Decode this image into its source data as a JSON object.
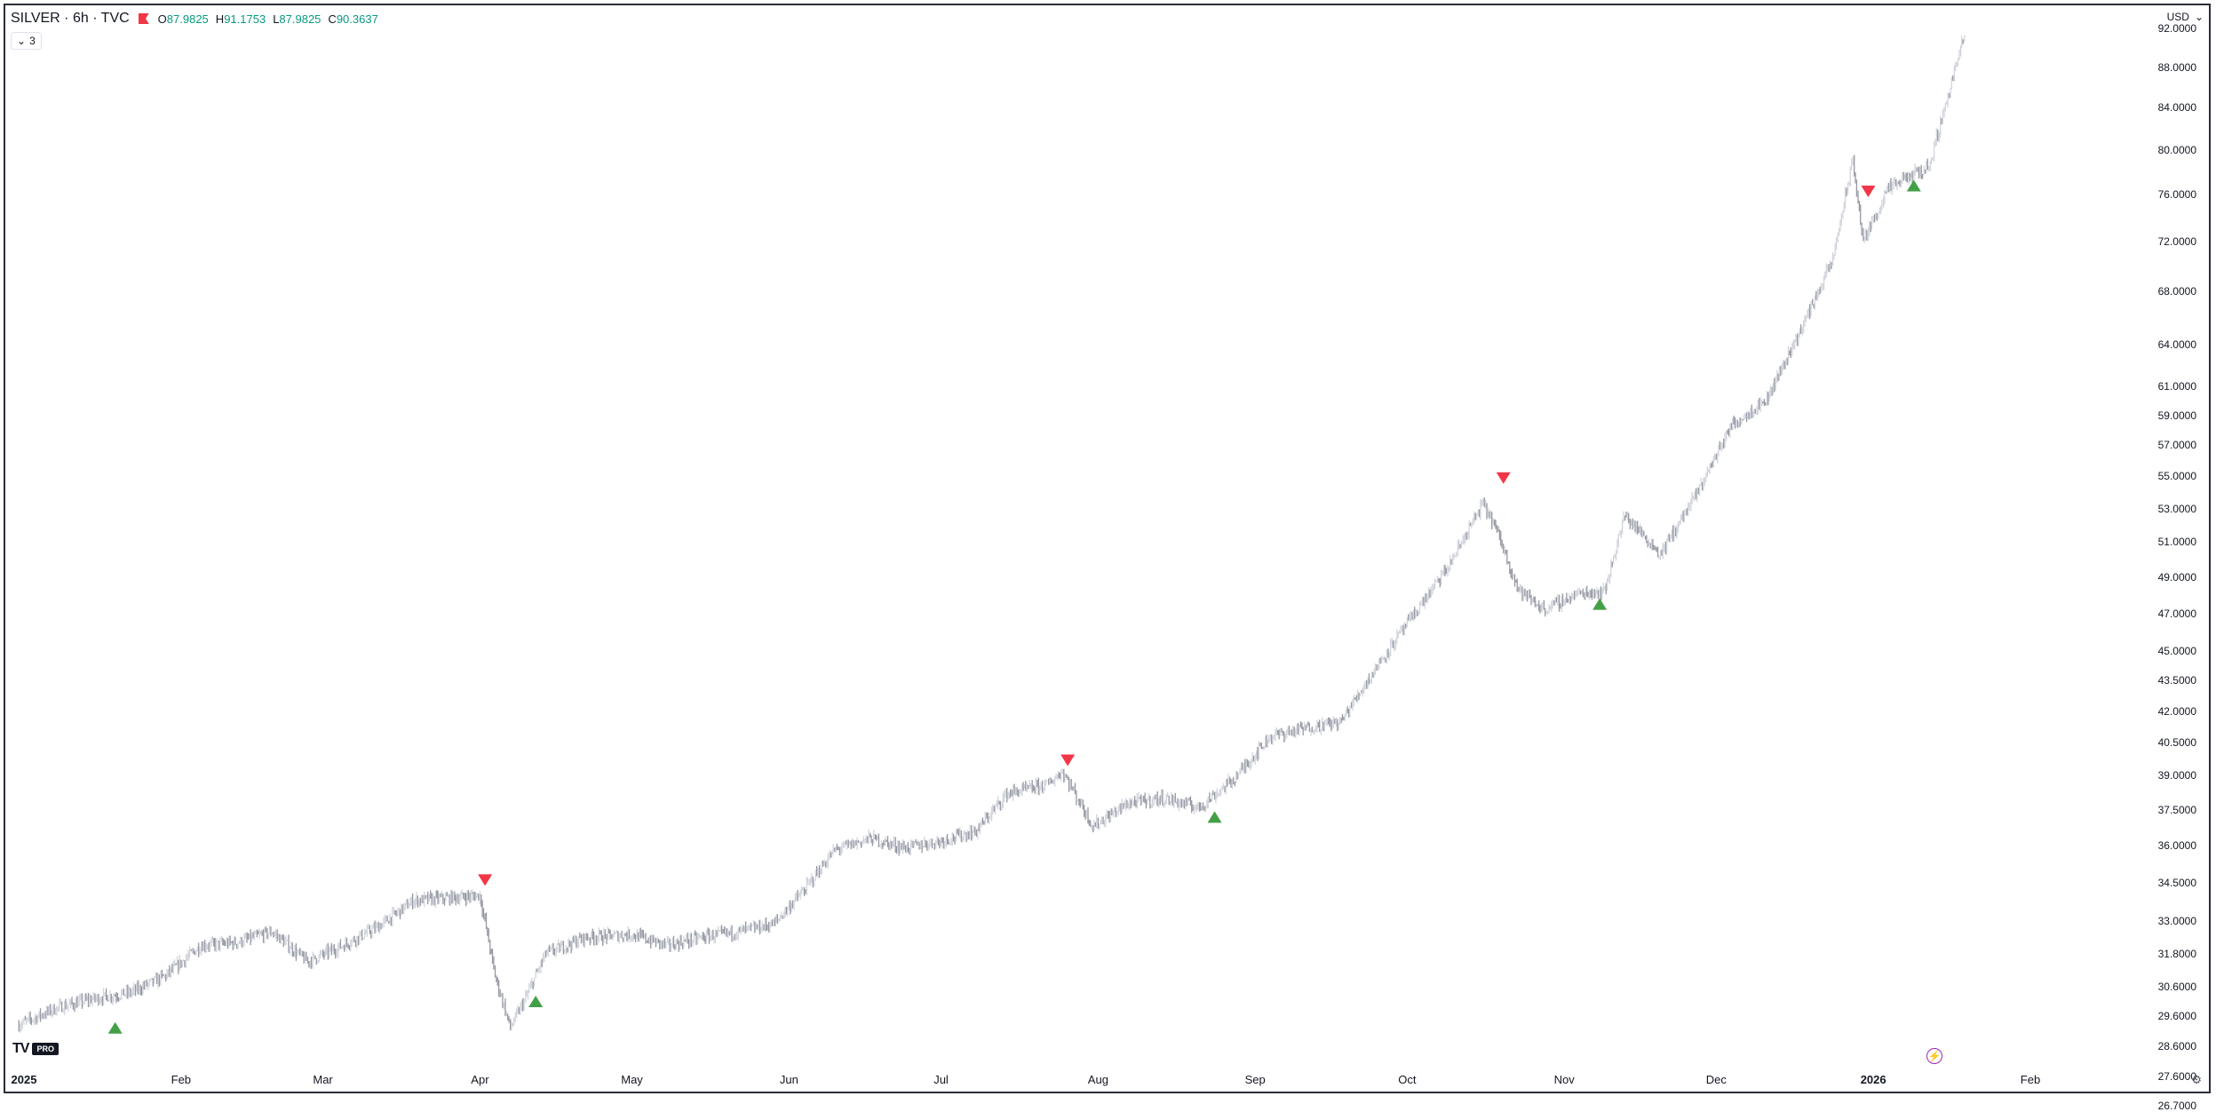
{
  "header": {
    "symbol": "SILVER · 6h · TVC",
    "ohlc": [
      {
        "key": "O",
        "value": "87.9825"
      },
      {
        "key": "H",
        "value": "91.1753"
      },
      {
        "key": "L",
        "value": "87.9825"
      },
      {
        "key": "C",
        "value": "90.3637"
      }
    ],
    "indicator_count": "3",
    "currency": "USD"
  },
  "colors": {
    "up_marker": "#43a047",
    "down_marker": "#f23645",
    "bars": "#b2b5be",
    "value_text": "#089981"
  },
  "logo": {
    "text": "TV",
    "badge": "PRO"
  },
  "icons": [
    "flag-icon",
    "chevron-down-icon",
    "lightning-icon",
    "settings-icon"
  ],
  "chart_data": {
    "type": "ohlc",
    "price_scale": "log",
    "y_ticks": [
      "92.0000",
      "88.0000",
      "84.0000",
      "80.0000",
      "76.0000",
      "72.0000",
      "68.0000",
      "64.0000",
      "61.0000",
      "59.0000",
      "57.0000",
      "55.0000",
      "53.0000",
      "51.0000",
      "49.0000",
      "47.0000",
      "45.0000",
      "43.5000",
      "42.0000",
      "40.5000",
      "39.0000",
      "37.5000",
      "36.0000",
      "34.5000",
      "33.0000",
      "31.8000",
      "30.6000",
      "29.6000",
      "28.6000",
      "27.6000",
      "26.7000"
    ],
    "x_ticks": [
      {
        "label": "2025",
        "date": "2025-01-01",
        "bold": true
      },
      {
        "label": "Feb",
        "date": "2025-02-01"
      },
      {
        "label": "Mar",
        "date": "2025-03-01"
      },
      {
        "label": "Apr",
        "date": "2025-04-01"
      },
      {
        "label": "May",
        "date": "2025-05-01"
      },
      {
        "label": "Jun",
        "date": "2025-06-01"
      },
      {
        "label": "Jul",
        "date": "2025-07-01"
      },
      {
        "label": "Aug",
        "date": "2025-08-01"
      },
      {
        "label": "Sep",
        "date": "2025-09-01"
      },
      {
        "label": "Oct",
        "date": "2025-10-01"
      },
      {
        "label": "Nov",
        "date": "2025-11-01"
      },
      {
        "label": "Dec",
        "date": "2025-12-01"
      },
      {
        "label": "2026",
        "date": "2026-01-01",
        "bold": true
      },
      {
        "label": "Feb",
        "date": "2026-02-01"
      }
    ],
    "price_path": [
      [
        "2024-12-31",
        29.3
      ],
      [
        "2025-01-08",
        29.9
      ],
      [
        "2025-01-15",
        30.2
      ],
      [
        "2025-01-22",
        30.4
      ],
      [
        "2025-01-29",
        31.0
      ],
      [
        "2025-02-05",
        32.1
      ],
      [
        "2025-02-12",
        32.2
      ],
      [
        "2025-02-19",
        32.6
      ],
      [
        "2025-02-26",
        31.5
      ],
      [
        "2025-03-05",
        32.1
      ],
      [
        "2025-03-12",
        32.8
      ],
      [
        "2025-03-19",
        33.8
      ],
      [
        "2025-03-26",
        33.9
      ],
      [
        "2025-04-01",
        34.0
      ],
      [
        "2025-04-04",
        31.0
      ],
      [
        "2025-04-07",
        29.2
      ],
      [
        "2025-04-10",
        30.2
      ],
      [
        "2025-04-14",
        31.8
      ],
      [
        "2025-04-22",
        32.4
      ],
      [
        "2025-05-01",
        32.5
      ],
      [
        "2025-05-08",
        32.1
      ],
      [
        "2025-05-15",
        32.4
      ],
      [
        "2025-05-22",
        32.6
      ],
      [
        "2025-05-29",
        32.9
      ],
      [
        "2025-06-04",
        34.2
      ],
      [
        "2025-06-10",
        35.8
      ],
      [
        "2025-06-17",
        36.3
      ],
      [
        "2025-06-24",
        35.9
      ],
      [
        "2025-07-01",
        36.2
      ],
      [
        "2025-07-08",
        36.6
      ],
      [
        "2025-07-14",
        38.2
      ],
      [
        "2025-07-22",
        38.6
      ],
      [
        "2025-07-25",
        39.2
      ],
      [
        "2025-07-31",
        36.8
      ],
      [
        "2025-08-07",
        37.8
      ],
      [
        "2025-08-14",
        38.0
      ],
      [
        "2025-08-21",
        37.6
      ],
      [
        "2025-08-28",
        38.9
      ],
      [
        "2025-09-04",
        40.8
      ],
      [
        "2025-09-11",
        41.2
      ],
      [
        "2025-09-18",
        41.5
      ],
      [
        "2025-09-25",
        44.2
      ],
      [
        "2025-10-02",
        46.8
      ],
      [
        "2025-10-09",
        49.5
      ],
      [
        "2025-10-16",
        53.3
      ],
      [
        "2025-10-18",
        52.2
      ],
      [
        "2025-10-23",
        48.3
      ],
      [
        "2025-10-28",
        47.2
      ],
      [
        "2025-11-04",
        48.1
      ],
      [
        "2025-11-09",
        48.2
      ],
      [
        "2025-11-13",
        52.6
      ],
      [
        "2025-11-20",
        50.3
      ],
      [
        "2025-11-27",
        53.8
      ],
      [
        "2025-12-04",
        58.3
      ],
      [
        "2025-12-11",
        60.1
      ],
      [
        "2025-12-18",
        65.3
      ],
      [
        "2025-12-24",
        70.5
      ],
      [
        "2025-12-28",
        79.0
      ],
      [
        "2025-12-30",
        72.0
      ],
      [
        "2026-01-04",
        76.5
      ],
      [
        "2026-01-08",
        77.6
      ],
      [
        "2026-01-12",
        78.5
      ],
      [
        "2026-01-15",
        83.8
      ],
      [
        "2026-01-19",
        91.2
      ]
    ],
    "signals": [
      {
        "type": "buy",
        "date": "2025-01-19",
        "price": 29.2
      },
      {
        "type": "sell",
        "date": "2025-04-02",
        "price": 34.6
      },
      {
        "type": "buy",
        "date": "2025-04-12",
        "price": 30.1
      },
      {
        "type": "sell",
        "date": "2025-07-26",
        "price": 39.7
      },
      {
        "type": "buy",
        "date": "2025-08-24",
        "price": 37.2
      },
      {
        "type": "sell",
        "date": "2025-10-20",
        "price": 54.9
      },
      {
        "type": "buy",
        "date": "2025-11-08",
        "price": 47.5
      },
      {
        "type": "sell",
        "date": "2025-12-31",
        "price": 76.3
      },
      {
        "type": "buy",
        "date": "2026-01-09",
        "price": 76.8
      }
    ]
  }
}
